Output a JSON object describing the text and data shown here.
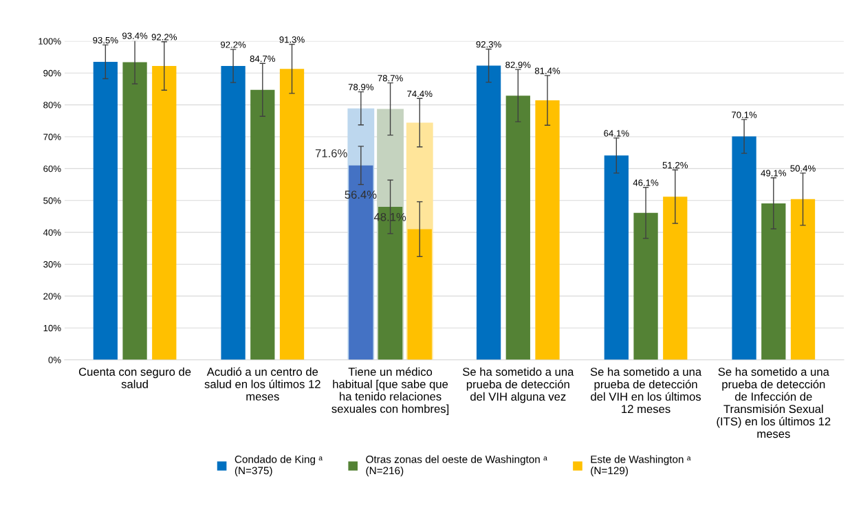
{
  "chart_data": {
    "type": "bar",
    "categories": [
      "Cuenta con seguro de\nsalud",
      "Acudió a un centro de\nsalud en los últimos 12\nmeses",
      "Tiene un médico\nhabitual [que sabe que\nha tenido relaciones\nsexuales con hombres]",
      "Se ha sometido a una\nprueba de detección\ndel VIH alguna vez",
      "Se ha sometido a una\nprueba de detección\ndel VIH en los últimos\n12 meses",
      "Se ha sometido a una\nprueba de detección\nde Infección de\nTransmisión Sexual\n(ITS) en los últimos 12\nmeses"
    ],
    "series": [
      {
        "name": "Condado de King ᵃ\n(N=375)",
        "color": "#0070c0",
        "colors": [
          "#0070c0",
          "#0070c0",
          "#4472c4",
          "#0070c0",
          "#0070c0",
          "#0070c0"
        ],
        "values": [
          93.5,
          92.2,
          61,
          92.3,
          64.1,
          70.1
        ],
        "errors": [
          5.3,
          5.2,
          6,
          5.2,
          5.5,
          5.3
        ],
        "value_labels": [
          "93.5%",
          "92.2%",
          null,
          "92.3%",
          "64.1%",
          "70.1%"
        ]
      },
      {
        "name": "Otras zonas del oeste de Washington ᵃ\n(N=216)",
        "color": "#548235",
        "values": [
          93.4,
          84.7,
          48,
          82.9,
          46.1,
          49.1
        ],
        "errors": [
          6.8,
          8.3,
          8.4,
          8.2,
          8,
          8
        ],
        "value_labels": [
          "93.4%",
          "84.7%",
          null,
          "82.9%",
          "46.1%",
          "49.1%"
        ]
      },
      {
        "name": "Este de Washington ᵃ\n(N=129)",
        "color": "#ffc000",
        "values": [
          92.2,
          91.3,
          41,
          81.4,
          51.2,
          50.4
        ],
        "errors": [
          7.6,
          7.7,
          8.6,
          7.8,
          8.4,
          8.2
        ],
        "value_labels": [
          "92.2%",
          "91.3%",
          null,
          "81.4%",
          "51.2%",
          "50.4%"
        ]
      },
      {
        "color": "#bdd7ee",
        "values": [
          null,
          null,
          78.9,
          null,
          null,
          null
        ],
        "errors": [
          null,
          null,
          5.2,
          null,
          null,
          null
        ],
        "value_labels": [
          null,
          null,
          "78.9%",
          null,
          null,
          null
        ]
      },
      {
        "color": "#c5d3bf",
        "values": [
          null,
          null,
          78.7,
          null,
          null,
          null
        ],
        "errors": [
          null,
          null,
          8.2,
          null,
          null,
          null
        ],
        "value_labels": [
          null,
          null,
          "78.7%",
          null,
          null,
          null
        ]
      },
      {
        "color": "#ffe59a",
        "values": [
          null,
          null,
          74.4,
          null,
          null,
          null
        ],
        "errors": [
          null,
          null,
          7.6,
          null,
          null,
          null
        ],
        "value_labels": [
          null,
          null,
          "74.4%",
          null,
          null,
          null
        ]
      }
    ],
    "annotations": [
      "71.6%",
      "56.4%",
      "48.1%"
    ],
    "ylim": [
      0,
      100
    ],
    "yticks": [
      {
        "value": 0,
        "label": "0%"
      },
      {
        "value": 10,
        "label": "10%"
      },
      {
        "value": 20,
        "label": "20%"
      },
      {
        "value": 30,
        "label": "30%"
      },
      {
        "value": 40,
        "label": "40%"
      },
      {
        "value": 50,
        "label": "50%"
      },
      {
        "value": 60,
        "label": "60%"
      },
      {
        "value": 70,
        "label": "70%"
      },
      {
        "value": 80,
        "label": "80%"
      },
      {
        "value": 90,
        "label": "90%"
      },
      {
        "value": 100,
        "label": "100%"
      }
    ],
    "grid": "y",
    "legend": "bottom"
  }
}
